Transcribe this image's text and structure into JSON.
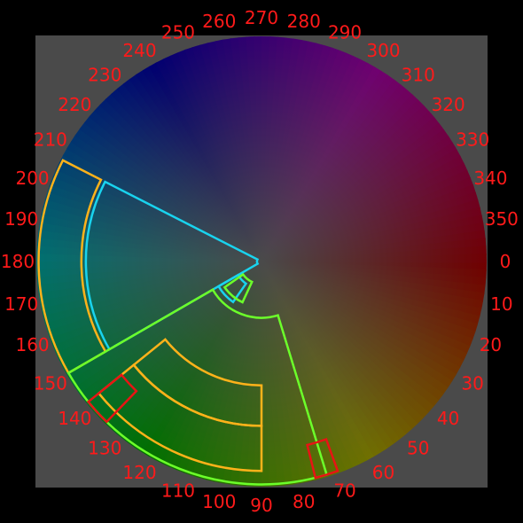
{
  "hue_wheel": {
    "degree_labels": [
      "0",
      "10",
      "20",
      "30",
      "40",
      "50",
      "60",
      "70",
      "80",
      "90",
      "100",
      "110",
      "120",
      "130",
      "140",
      "150",
      "160",
      "170",
      "180",
      "190",
      "200",
      "210",
      "220",
      "230",
      "240",
      "250",
      "260",
      "270",
      "280",
      "290",
      "300",
      "310",
      "320",
      "330",
      "340",
      "350"
    ],
    "colors": {
      "label": "#ff1a1a",
      "cyan": "#19d3ee",
      "orange": "#ffb21a",
      "green": "#6cff2a",
      "red": "#e81414",
      "background": "#4a4a4a"
    },
    "arcs": [
      {
        "color": "cyan",
        "from_deg": 150,
        "to_deg": 207,
        "inner": 0.02,
        "outer": 0.78
      },
      {
        "color": "orange",
        "from_deg": 150,
        "to_deg": 207,
        "inner": 0.8,
        "outer": 0.99
      },
      {
        "color": "green",
        "from_deg": 73,
        "to_deg": 150,
        "inner": 0.25,
        "outer": 0.99
      },
      {
        "color": "orange",
        "from_deg": 90,
        "to_deg": 141,
        "inner": 0.55,
        "outer": 0.73
      },
      {
        "color": "orange",
        "from_deg": 90,
        "to_deg": 141,
        "inner": 0.73,
        "outer": 0.93
      },
      {
        "color": "red",
        "from_deg": 70,
        "to_deg": 76,
        "inner": 0.84,
        "outer": 0.99
      },
      {
        "color": "red",
        "from_deg": 134,
        "to_deg": 141,
        "inner": 0.8,
        "outer": 0.99
      },
      {
        "color": "cyan",
        "from_deg": 125,
        "to_deg": 150,
        "inner": 0.12,
        "outer": 0.22
      },
      {
        "color": "green",
        "from_deg": 115,
        "to_deg": 145,
        "inner": 0.1,
        "outer": 0.2
      }
    ]
  }
}
